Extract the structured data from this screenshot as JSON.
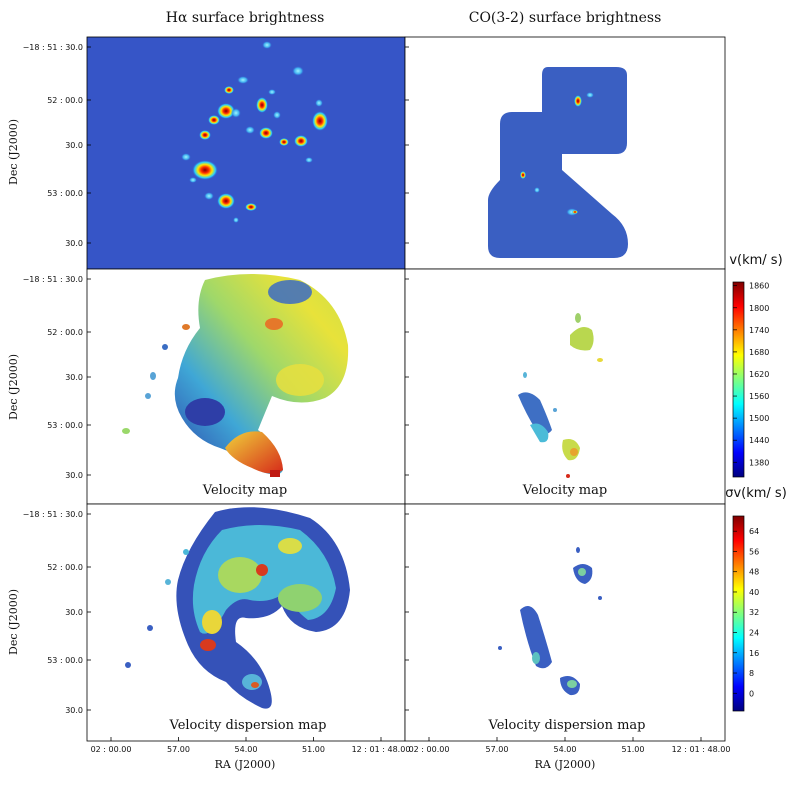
{
  "chart_data": {
    "type": "heatmap",
    "column_titles": [
      "Hα surface brightness",
      "CO(3-2) surface brightness"
    ],
    "row_labels": [
      "",
      "Velocity map",
      "Velocity dispersion map"
    ],
    "ylabel": "Dec (J2000)",
    "xlabel": "RA (J2000)",
    "y_ticks": [
      "−18 : 51 : 30.0",
      "52 : 00.0",
      "30.0",
      "53 : 00.0",
      "30.0"
    ],
    "x_ticks": [
      "02 : 00.00",
      "57.00",
      "54.00",
      "51.00",
      "12 : 01 : 48.00"
    ],
    "velocity_colorbar": {
      "title": "v(km/ s)",
      "ticks": [
        1860,
        1800,
        1740,
        1680,
        1620,
        1560,
        1500,
        1440,
        1380
      ],
      "range": [
        1340,
        1870
      ]
    },
    "dispersion_colorbar": {
      "title": "σv(km/ s)",
      "ticks": [
        64,
        56,
        48,
        40,
        32,
        24,
        16,
        8,
        0
      ],
      "range": [
        -7,
        70
      ]
    }
  }
}
